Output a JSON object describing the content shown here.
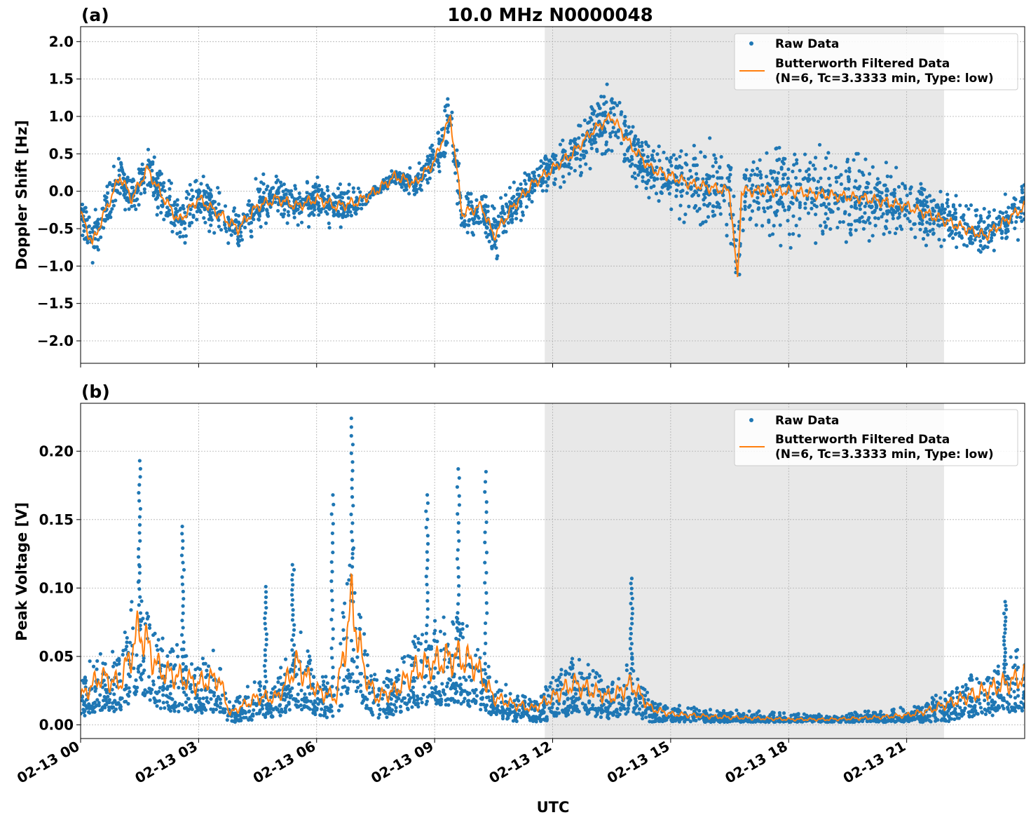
{
  "figure": {
    "title": "10.0 MHz N0000048",
    "xlabel": "UTC",
    "x_tick_labels": [
      "02-13 00",
      "02-13 03",
      "02-13 06",
      "02-13 09",
      "02-13 12",
      "02-13 15",
      "02-13 18",
      "02-13 21"
    ],
    "x_tick_hours": [
      0,
      3,
      6,
      9,
      12,
      15,
      18,
      21
    ],
    "colors": {
      "raw": "#1f77b4",
      "filtered": "#ff7f0e",
      "shade": "#e8e8e8",
      "grid": "#b0b0b0"
    }
  },
  "chart_data": [
    {
      "panel_label": "(a)",
      "type": "scatter",
      "title": "10.0 MHz N0000048",
      "xlabel": "UTC",
      "ylabel": "Doppler Shift [Hz]",
      "x_unit": "hours since 02-13 00 UTC",
      "xlim": [
        0,
        24
      ],
      "ylim": [
        -2.3,
        2.2
      ],
      "y_tick_values": [
        -2.0,
        -1.5,
        -1.0,
        -0.5,
        0.0,
        0.5,
        1.0,
        1.5,
        2.0
      ],
      "y_tick_labels": [
        "−2.0",
        "−1.5",
        "−1.0",
        "−0.5",
        "0.0",
        "0.5",
        "1.0",
        "1.5",
        "2.0"
      ],
      "shaded_region": [
        11.8,
        21.95
      ],
      "grid": true,
      "legend": {
        "position": "upper right",
        "entries": [
          "Raw Data",
          "Butterworth Filtered Data",
          "(N=6, Tc=3.3333 min, Type: low)"
        ]
      },
      "series": [
        {
          "name": "Butterworth Filtered Data",
          "x": [
            0,
            0.3,
            0.6,
            1.0,
            1.3,
            1.7,
            2.0,
            2.5,
            3.0,
            3.5,
            4.0,
            4.5,
            5.0,
            5.5,
            6.0,
            6.5,
            7.0,
            7.5,
            8.0,
            8.5,
            9.0,
            9.4,
            9.7,
            10.2,
            10.5,
            11.0,
            11.5,
            12.0,
            12.5,
            13.0,
            13.5,
            14.0,
            14.5,
            15.0,
            15.5,
            16.0,
            16.5,
            16.7,
            16.8,
            17.0,
            18.0,
            19.0,
            20.0,
            21.0,
            22.0,
            22.5,
            23.0,
            23.5,
            24.0
          ],
          "values": [
            -0.3,
            -0.7,
            -0.3,
            0.2,
            -0.1,
            0.3,
            0.0,
            -0.4,
            -0.1,
            -0.3,
            -0.5,
            -0.2,
            -0.1,
            -0.2,
            -0.1,
            -0.2,
            -0.15,
            0.0,
            0.2,
            0.1,
            0.4,
            1.0,
            -0.3,
            -0.2,
            -0.6,
            -0.2,
            0.1,
            0.3,
            0.5,
            0.8,
            1.0,
            0.6,
            0.3,
            0.2,
            0.1,
            0.05,
            0.0,
            -1.2,
            0.0,
            0.0,
            0.0,
            -0.05,
            -0.1,
            -0.2,
            -0.4,
            -0.5,
            -0.6,
            -0.4,
            -0.2
          ]
        },
        {
          "name": "Raw Data",
          "spread": [
            0.3,
            0.35,
            0.3,
            0.3,
            0.3,
            0.3,
            0.3,
            0.35,
            0.3,
            0.35,
            0.35,
            0.35,
            0.3,
            0.3,
            0.3,
            0.3,
            0.25,
            0.1,
            0.1,
            0.2,
            0.35,
            0.5,
            0.35,
            0.35,
            0.35,
            0.3,
            0.3,
            0.3,
            0.35,
            0.45,
            0.5,
            0.45,
            0.4,
            0.5,
            0.55,
            0.6,
            0.6,
            0.8,
            0.6,
            0.65,
            0.65,
            0.6,
            0.55,
            0.45,
            0.4,
            0.35,
            0.35,
            0.35,
            0.35
          ]
        }
      ]
    },
    {
      "panel_label": "(b)",
      "type": "scatter",
      "xlabel": "UTC",
      "ylabel": "Peak Voltage [V]",
      "x_unit": "hours since 02-13 00 UTC",
      "xlim": [
        0,
        24
      ],
      "ylim": [
        -0.01,
        0.235
      ],
      "y_tick_values": [
        0.0,
        0.05,
        0.1,
        0.15,
        0.2
      ],
      "y_tick_labels": [
        "0.00",
        "0.05",
        "0.10",
        "0.15",
        "0.20"
      ],
      "shaded_region": [
        11.8,
        21.95
      ],
      "grid": true,
      "legend": {
        "position": "upper right",
        "entries": [
          "Raw Data",
          "Butterworth Filtered Data",
          "(N=6, Tc=3.3333 min, Type: low)"
        ]
      },
      "series": [
        {
          "name": "Butterworth Filtered Data",
          "x": [
            0,
            0.5,
            1.0,
            1.5,
            2.0,
            2.5,
            3.0,
            3.5,
            3.8,
            4.0,
            4.5,
            5.0,
            5.5,
            6.0,
            6.5,
            6.9,
            7.2,
            7.5,
            8.0,
            8.5,
            9.0,
            9.5,
            10.0,
            10.5,
            11.0,
            11.5,
            12.0,
            12.5,
            13.0,
            13.5,
            14.0,
            14.5,
            15.0,
            16.0,
            17.0,
            18.0,
            19.0,
            20.0,
            21.0,
            21.5,
            22.0,
            22.5,
            23.0,
            23.5,
            24.0
          ],
          "values": [
            0.02,
            0.035,
            0.03,
            0.07,
            0.04,
            0.035,
            0.03,
            0.035,
            0.008,
            0.012,
            0.02,
            0.02,
            0.045,
            0.025,
            0.02,
            0.09,
            0.04,
            0.02,
            0.025,
            0.04,
            0.045,
            0.05,
            0.045,
            0.02,
            0.015,
            0.012,
            0.02,
            0.03,
            0.025,
            0.02,
            0.03,
            0.012,
            0.008,
            0.006,
            0.005,
            0.004,
            0.004,
            0.005,
            0.007,
            0.01,
            0.015,
            0.02,
            0.025,
            0.03,
            0.035
          ]
        },
        {
          "name": "Raw Data",
          "peaks": [
            {
              "x": 1.5,
              "value": 0.193
            },
            {
              "x": 2.6,
              "value": 0.145
            },
            {
              "x": 4.7,
              "value": 0.101
            },
            {
              "x": 5.4,
              "value": 0.117
            },
            {
              "x": 6.4,
              "value": 0.168
            },
            {
              "x": 6.9,
              "value": 0.224
            },
            {
              "x": 8.8,
              "value": 0.168
            },
            {
              "x": 9.6,
              "value": 0.187
            },
            {
              "x": 10.3,
              "value": 0.185
            },
            {
              "x": 14.0,
              "value": 0.107
            },
            {
              "x": 23.5,
              "value": 0.09
            }
          ]
        }
      ]
    }
  ]
}
